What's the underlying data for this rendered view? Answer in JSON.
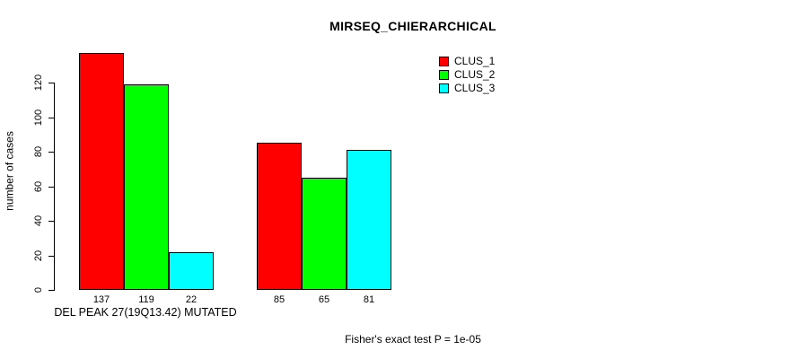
{
  "chart_data": {
    "type": "bar",
    "title": "MIRSEQ_CHIERARCHICAL",
    "ylabel": "number of cases",
    "xlabel": "DEL PEAK 27(19Q13.42) MUTATED",
    "annotation": "Fisher's exact test P = 1e-05",
    "yticks": [
      0,
      20,
      40,
      60,
      80,
      100,
      120
    ],
    "ylim": [
      0,
      137
    ],
    "grid": false,
    "legend_position": "top-right",
    "legend_entries": [
      "CLUS_1",
      "CLUS_2",
      "CLUS_3"
    ],
    "series": [
      {
        "name": "CLUS_1",
        "color": "#ff0000",
        "values": [
          137,
          85
        ]
      },
      {
        "name": "CLUS_2",
        "color": "#00ff00",
        "values": [
          119,
          65
        ]
      },
      {
        "name": "CLUS_3",
        "color": "#00ffff",
        "values": [
          22,
          81
        ]
      }
    ],
    "bar_value_labels": [
      [
        "137",
        "119",
        "22"
      ],
      [
        "85",
        "65",
        "81"
      ]
    ]
  }
}
